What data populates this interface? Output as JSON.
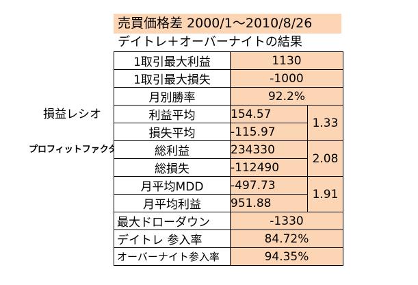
{
  "title": "売買価格差  2000/1〜2010/8/26",
  "subtitle": "デイトレ＋オーバーナイトの結果",
  "side_labels": {
    "profit_loss_ratio": "損益レシオ",
    "profit_factor": "プロフィットファクター"
  },
  "rows": {
    "max_profit": {
      "label": "1取引最大利益",
      "value": "1130"
    },
    "max_loss": {
      "label": "1取引最大損失",
      "value": "-1000"
    },
    "monthly_win_rate": {
      "label": "月別勝率",
      "value": "92.2%"
    },
    "avg_profit": {
      "label": "利益平均",
      "value": "154.57"
    },
    "avg_loss": {
      "label": "損失平均",
      "value": "-115.97"
    },
    "pl_ratio": "1.33",
    "total_profit": {
      "label": "総利益",
      "value": "234330"
    },
    "total_loss": {
      "label": "総損失",
      "value": "-112490"
    },
    "profit_factor": "2.08",
    "monthly_avg_mdd": {
      "label": "月平均MDD",
      "value": "-497.73"
    },
    "monthly_avg_profit": {
      "label": "月平均利益",
      "value": "951.88"
    },
    "mdd_ratio": "1.91",
    "max_drawdown": {
      "label": "最大ドローダウン",
      "value": "-1330"
    },
    "daytrade_rate": {
      "label": "デイトレ 参入率",
      "value": "84.72%"
    },
    "overnight_rate": {
      "label": "オーバーナイト参入率",
      "value": "94.35%"
    }
  },
  "colors": {
    "cell_fill": "#fcd5b4",
    "border": "#000000"
  }
}
